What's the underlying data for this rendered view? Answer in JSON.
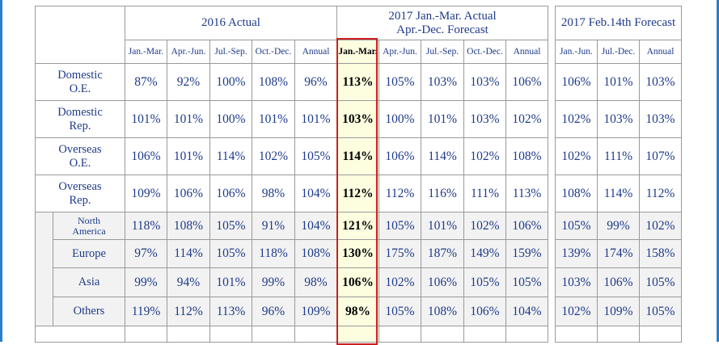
{
  "headers": {
    "group_2016": "2016 Actual",
    "group_2017_line1": "2017 Jan.-Mar. Actual",
    "group_2017_line2": "Apr.-Dec. Forecast",
    "group_forecast": "2017 Feb.14th Forecast",
    "sub_2016": [
      "Jan.-Mar.",
      "Apr.-Jun.",
      "Jul.-Sep.",
      "Oct.-Dec.",
      "Annual"
    ],
    "sub_2017": [
      "Jan.-Mar.",
      "Apr.-Jun.",
      "Jul.-Sep.",
      "Oct.-Dec.",
      "Annual"
    ],
    "sub_forecast": [
      "Jan.-Jun.",
      "Jul.-Dec.",
      "Annual"
    ]
  },
  "rows": [
    {
      "label1": "Domestic",
      "label2": "O.E.",
      "v2016": [
        "87%",
        "92%",
        "100%",
        "108%",
        "96%"
      ],
      "v2017": [
        "113%",
        "105%",
        "103%",
        "103%",
        "106%"
      ],
      "vfc": [
        "106%",
        "101%",
        "103%"
      ]
    },
    {
      "label1": "Domestic",
      "label2": "Rep.",
      "v2016": [
        "101%",
        "101%",
        "100%",
        "101%",
        "101%"
      ],
      "v2017": [
        "103%",
        "100%",
        "101%",
        "103%",
        "102%"
      ],
      "vfc": [
        "102%",
        "103%",
        "103%"
      ]
    },
    {
      "label1": "Overseas",
      "label2": "O.E.",
      "v2016": [
        "106%",
        "101%",
        "114%",
        "102%",
        "105%"
      ],
      "v2017": [
        "114%",
        "106%",
        "114%",
        "102%",
        "108%"
      ],
      "vfc": [
        "102%",
        "111%",
        "107%"
      ]
    },
    {
      "label1": "Overseas",
      "label2": "Rep.",
      "v2016": [
        "109%",
        "106%",
        "106%",
        "98%",
        "104%"
      ],
      "v2017": [
        "112%",
        "112%",
        "116%",
        "111%",
        "113%"
      ],
      "vfc": [
        "108%",
        "114%",
        "112%"
      ]
    },
    {
      "label1": "North",
      "label2": "America",
      "v2016": [
        "118%",
        "108%",
        "105%",
        "91%",
        "104%"
      ],
      "v2017": [
        "121%",
        "105%",
        "101%",
        "102%",
        "106%"
      ],
      "vfc": [
        "105%",
        "99%",
        "102%"
      ]
    },
    {
      "label1": "Europe",
      "label2": "",
      "v2016": [
        "97%",
        "114%",
        "105%",
        "118%",
        "108%"
      ],
      "v2017": [
        "130%",
        "175%",
        "187%",
        "149%",
        "159%"
      ],
      "vfc": [
        "139%",
        "174%",
        "158%"
      ]
    },
    {
      "label1": "Asia",
      "label2": "",
      "v2016": [
        "99%",
        "94%",
        "101%",
        "99%",
        "98%"
      ],
      "v2017": [
        "106%",
        "102%",
        "106%",
        "105%",
        "105%"
      ],
      "vfc": [
        "103%",
        "106%",
        "105%"
      ]
    },
    {
      "label1": "Others",
      "label2": "",
      "v2016": [
        "119%",
        "112%",
        "113%",
        "96%",
        "109%"
      ],
      "v2017": [
        "98%",
        "105%",
        "108%",
        "106%",
        "104%"
      ],
      "vfc": [
        "102%",
        "109%",
        "105%"
      ]
    }
  ]
}
